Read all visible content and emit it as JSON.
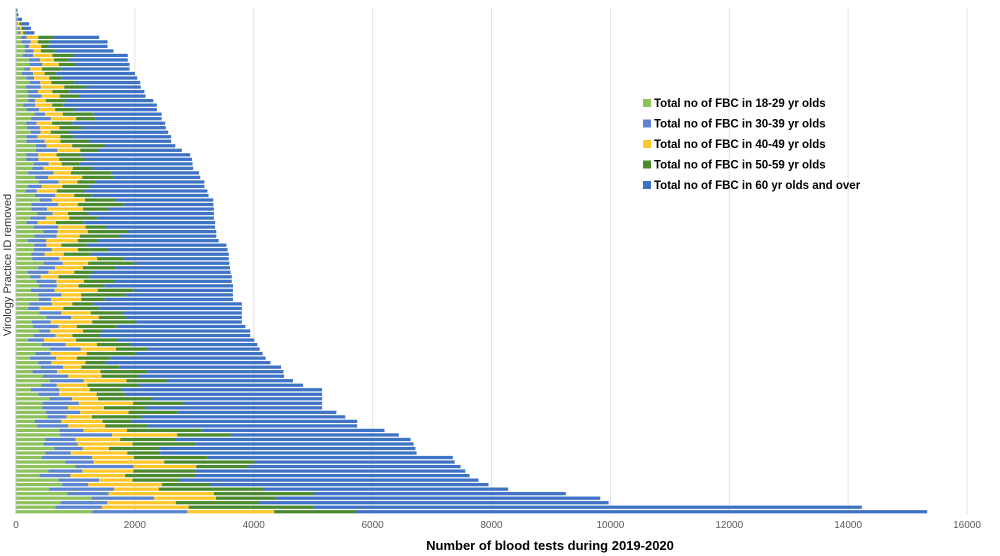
{
  "chart_data": {
    "type": "bar",
    "orientation": "horizontal",
    "stacked": true,
    "xlabel": "Number of blood tests during 2019-2020",
    "ylabel": "Virology Practice ID removed",
    "xlim": [
      0,
      16000
    ],
    "x_ticks": [
      "0",
      "2000",
      "4000",
      "6000",
      "8000",
      "10000",
      "12000",
      "14000",
      "16000"
    ],
    "grid": "vertical",
    "legend_position": "right",
    "colors": [
      "#8dc15c",
      "#5b86cf",
      "#ffc72c",
      "#4a8a2e",
      "#3d72c4"
    ],
    "series": [
      {
        "name": "Total no of FBC in 18-29 yr olds"
      },
      {
        "name": "Total no of FBC in 30-39 yr olds"
      },
      {
        "name": "Total no of FBC in 40-49 yr olds"
      },
      {
        "name": "Total no of FBC in 50-59 yr olds"
      },
      {
        "name": "Total no of FBC in 60 yr olds and over"
      }
    ],
    "row_totals": [
      0,
      40,
      100,
      220,
      250,
      310,
      1400,
      1540,
      1540,
      1640,
      1880,
      1880,
      1910,
      1910,
      2000,
      2040,
      2090,
      2100,
      2160,
      2180,
      2310,
      2370,
      2370,
      2450,
      2450,
      2510,
      2520,
      2560,
      2610,
      2610,
      2680,
      2790,
      2930,
      2960,
      2970,
      2980,
      3080,
      3100,
      3170,
      3170,
      3220,
      3240,
      3320,
      3320,
      3330,
      3330,
      3330,
      3350,
      3350,
      3370,
      3370,
      3410,
      3540,
      3560,
      3580,
      3580,
      3590,
      3600,
      3610,
      3630,
      3630,
      3650,
      3650,
      3650,
      3650,
      3800,
      3800,
      3800,
      3800,
      3800,
      3860,
      3940,
      3940,
      4010,
      4060,
      4100,
      4150,
      4200,
      4280,
      4460,
      4500,
      4510,
      4660,
      4830,
      5150,
      5150,
      5150,
      5150,
      5150,
      5390,
      5540,
      5740,
      5740,
      6200,
      6440,
      6640,
      6690,
      6720,
      6740,
      7350,
      7380,
      7480,
      7560,
      7630,
      7780,
      7950,
      8280,
      9250,
      9830,
      9970,
      14230,
      15330
    ]
  }
}
